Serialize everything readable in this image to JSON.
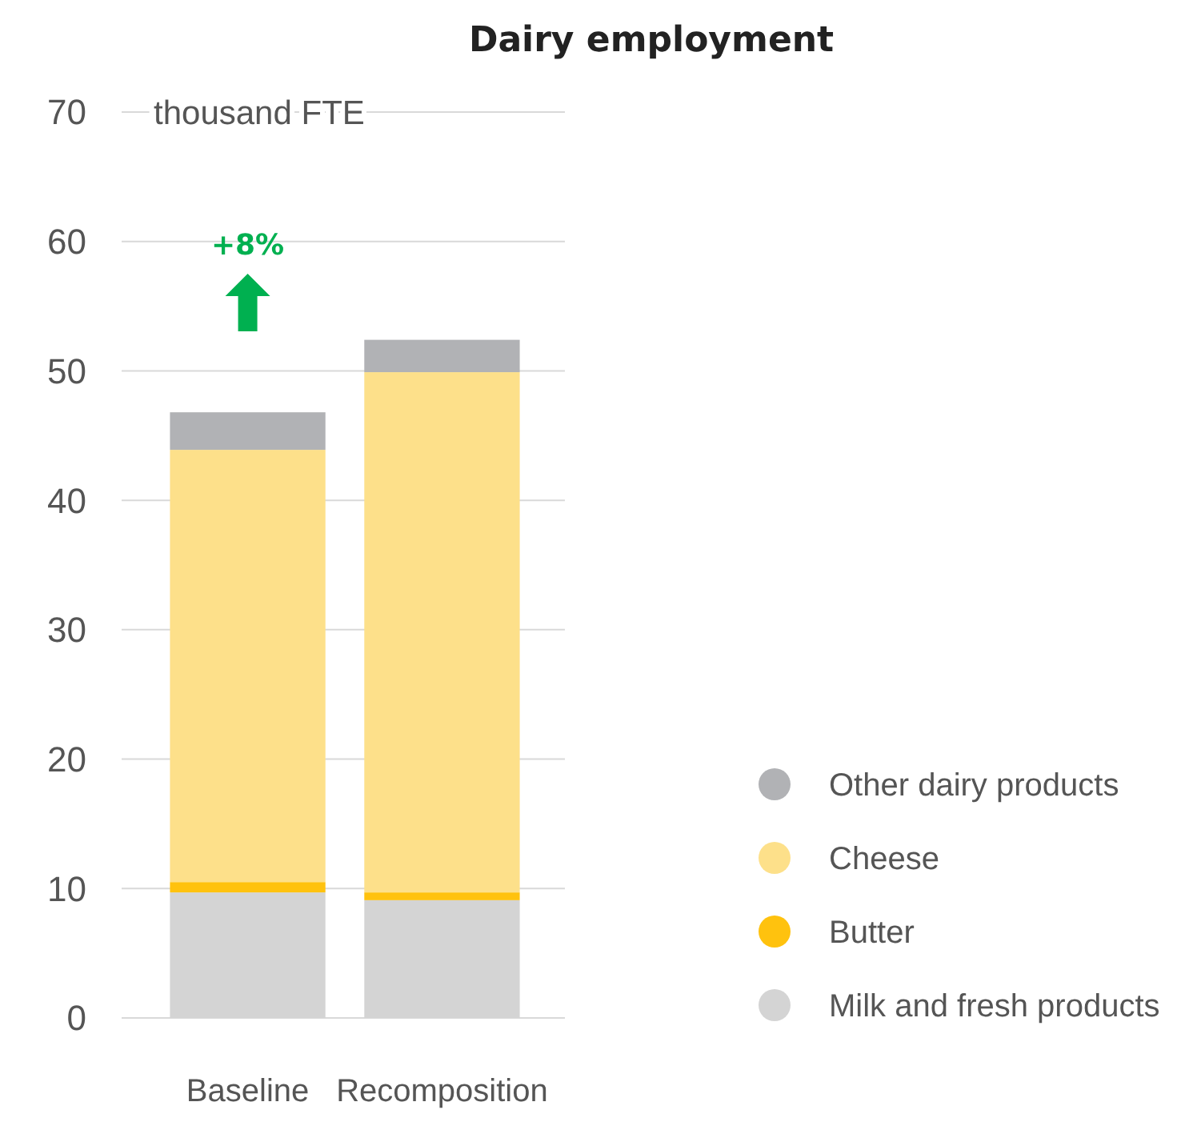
{
  "chart_data": {
    "type": "bar",
    "title": "Dairy employment",
    "ylabel": "thousand FTE",
    "categories": [
      "Baseline",
      "Recomposition"
    ],
    "stacked": true,
    "series": [
      {
        "name": "Milk and fresh products",
        "color": "#d4d4d4",
        "values": [
          9.7,
          9.1
        ]
      },
      {
        "name": "Butter",
        "color": "#ffc20e",
        "values": [
          0.8,
          0.6
        ]
      },
      {
        "name": "Cheese",
        "color": "#fde08a",
        "values": [
          33.4,
          40.2
        ]
      },
      {
        "name": "Other dairy products",
        "color": "#b1b2b5",
        "values": [
          2.9,
          2.5
        ]
      }
    ],
    "ylim": [
      0,
      70
    ],
    "yticks": [
      0,
      10,
      20,
      30,
      40,
      50,
      60,
      70
    ],
    "grid": "y",
    "legend": "right",
    "annotations": [
      "+8%"
    ]
  }
}
